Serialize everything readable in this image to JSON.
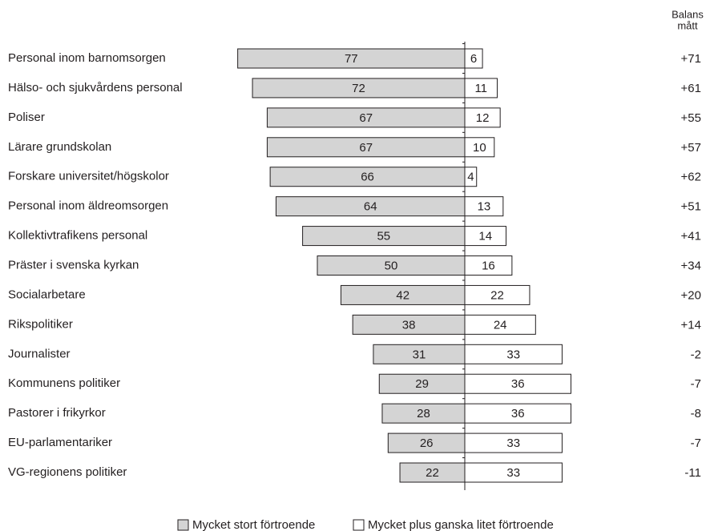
{
  "chart_data": {
    "type": "diverging_bar",
    "categories": [
      "Personal inom barnomsorgen",
      "Hälso- och sjukvårdens personal",
      "Poliser",
      "Lärare grundskolan",
      "Forskare universitet/högskolor",
      "Personal inom äldreomsorgen",
      "Kollektivtrafikens personal",
      "Präster i svenska kyrkan",
      "Socialarbetare",
      "Rikspolitiker",
      "Journalister",
      "Kommunens politiker",
      "Pastorer i frikyrkor",
      "EU-parlamentariker",
      "VG-regionens politiker"
    ],
    "series": [
      {
        "name": "Mycket stort förtroende",
        "color": "#d4d4d4",
        "values": [
          77,
          72,
          67,
          67,
          66,
          64,
          55,
          50,
          42,
          38,
          31,
          29,
          28,
          26,
          22
        ]
      },
      {
        "name": "Mycket plus ganska litet förtroende",
        "color": "#ffffff",
        "values": [
          6,
          11,
          12,
          10,
          4,
          13,
          14,
          16,
          22,
          24,
          33,
          36,
          36,
          33,
          33
        ]
      }
    ],
    "balance_header": [
      "Balans",
      "mått"
    ],
    "balance": {
      "values": [
        71,
        61,
        55,
        57,
        62,
        51,
        41,
        34,
        20,
        14,
        -2,
        -7,
        -8,
        -7,
        -11
      ],
      "value_labels": [
        "+71",
        "+61",
        "+55",
        "+57",
        "+62",
        "+51",
        "+41",
        "+34",
        "+20",
        "+14",
        "-2",
        "-7",
        "-8",
        "-7",
        "-11"
      ]
    }
  }
}
